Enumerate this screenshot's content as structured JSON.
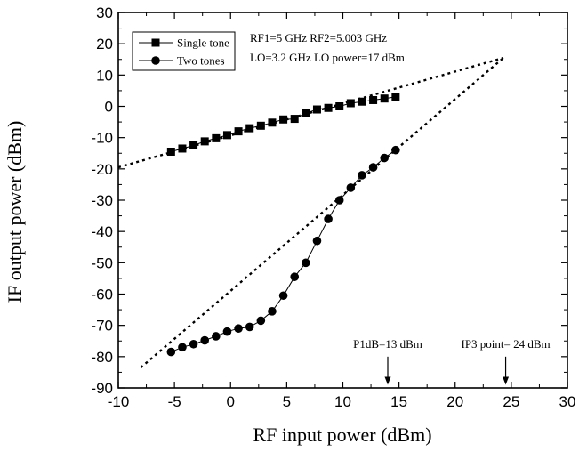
{
  "chart_data": {
    "type": "scatter",
    "xlabel": "RF input power (dBm)",
    "ylabel": "IF output power (dBm)",
    "xlim": [
      -10,
      30
    ],
    "ylim": [
      -90,
      30
    ],
    "xticks": [
      -10,
      -5,
      0,
      5,
      10,
      15,
      20,
      25,
      30
    ],
    "yticks": [
      -90,
      -80,
      -70,
      -60,
      -50,
      -40,
      -30,
      -20,
      -10,
      0,
      10,
      20,
      30
    ],
    "grid": false,
    "legend_position": "top-left",
    "series": [
      {
        "name": "Single tone",
        "marker": "square",
        "line": "solid",
        "x": [
          -5.3,
          -4.3,
          -3.3,
          -2.3,
          -1.3,
          -0.3,
          0.7,
          1.7,
          2.7,
          3.7,
          4.7,
          5.7,
          6.7,
          7.7,
          8.7,
          9.7,
          10.7,
          11.7,
          12.7,
          13.7,
          14.7
        ],
        "y": [
          -14.5,
          -13.5,
          -12.5,
          -11.2,
          -10.2,
          -9.2,
          -8.0,
          -7.0,
          -6.2,
          -5.2,
          -4.2,
          -4.0,
          -2.2,
          -1.0,
          -0.5,
          0.0,
          1.0,
          1.5,
          2.0,
          2.5,
          3.0
        ]
      },
      {
        "name": "Two tones",
        "marker": "circle",
        "line": "solid",
        "x": [
          -5.3,
          -4.3,
          -3.3,
          -2.3,
          -1.3,
          -0.3,
          0.7,
          1.7,
          2.7,
          3.7,
          4.7,
          5.7,
          6.7,
          7.7,
          8.7,
          9.7,
          10.7,
          11.7,
          12.7,
          13.7,
          14.7
        ],
        "y": [
          -78.5,
          -77.0,
          -76.0,
          -74.8,
          -73.5,
          -72.0,
          -71.0,
          -70.5,
          -68.5,
          -65.5,
          -60.5,
          -54.5,
          -50.0,
          -43.0,
          -36.0,
          -30.0,
          -26.0,
          -22.0,
          -19.5,
          -16.5,
          -14.0
        ]
      }
    ],
    "fit_lines": [
      {
        "x": [
          -10,
          24.3
        ],
        "y": [
          -19.5,
          15.5
        ]
      },
      {
        "x": [
          -8,
          24.3
        ],
        "y": [
          -83.5,
          15.5
        ]
      }
    ],
    "annotations": [
      {
        "lines": [
          "RF1=5 GHz RF2=5.003 GHz",
          "LO=3.2 GHz LO power=17 dBm"
        ]
      },
      {
        "text": "P1dB=13 dBm",
        "arrow_x": 14,
        "arrow_top_y": -80,
        "arrow_bottom_y": -89
      },
      {
        "text": "IP3 point= 24 dBm",
        "arrow_x": 24.5,
        "arrow_top_y": -80,
        "arrow_bottom_y": -89
      }
    ]
  }
}
